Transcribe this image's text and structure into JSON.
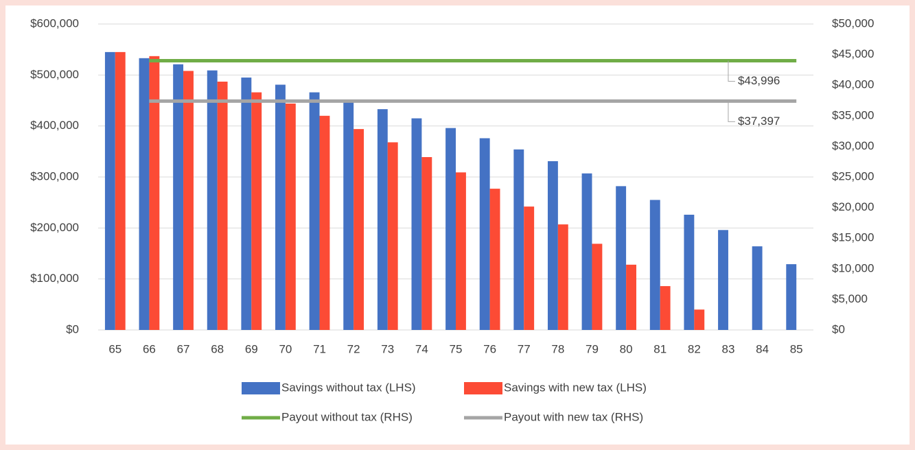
{
  "chart_data": {
    "type": "bar",
    "categories": [
      "65",
      "66",
      "67",
      "68",
      "69",
      "70",
      "71",
      "72",
      "73",
      "74",
      "75",
      "76",
      "77",
      "78",
      "79",
      "80",
      "81",
      "82",
      "83",
      "84",
      "85"
    ],
    "series": [
      {
        "name": "Savings without tax (LHS)",
        "color": "#4472c4",
        "type": "bar",
        "values": [
          545000,
          533000,
          521000,
          509000,
          495000,
          481000,
          466000,
          450000,
          433000,
          415000,
          396000,
          376000,
          354000,
          331000,
          307000,
          282000,
          255000,
          226000,
          196000,
          164000,
          129000
        ]
      },
      {
        "name": "Savings with new tax (LHS)",
        "color": "#fc4b35",
        "type": "bar",
        "values": [
          545000,
          537000,
          508000,
          487000,
          466000,
          444000,
          420000,
          394000,
          368000,
          339000,
          309000,
          277000,
          242000,
          207000,
          169000,
          128000,
          86000,
          40000,
          null,
          null,
          null
        ]
      },
      {
        "name": "Payout without tax (RHS)",
        "color": "#70ad47",
        "type": "line",
        "axis": "y2",
        "values": [
          null,
          43996,
          43996,
          43996,
          43996,
          43996,
          43996,
          43996,
          43996,
          43996,
          43996,
          43996,
          43996,
          43996,
          43996,
          43996,
          43996,
          43996,
          43996,
          43996,
          43996
        ],
        "value_labels": [
          null,
          null,
          null,
          null,
          null,
          null,
          null,
          null,
          null,
          null,
          null,
          null,
          null,
          null,
          null,
          null,
          null,
          null,
          "$43,996",
          null,
          null
        ]
      },
      {
        "name": "Payout with new tax (RHS)",
        "color": "#a5a5a5",
        "type": "line",
        "axis": "y2",
        "values": [
          null,
          37397,
          37397,
          37397,
          37397,
          37397,
          37397,
          37397,
          37397,
          37397,
          37397,
          37397,
          37397,
          37397,
          37397,
          37397,
          37397,
          37397,
          37397,
          37397,
          37397
        ],
        "value_labels": [
          null,
          null,
          null,
          null,
          null,
          null,
          null,
          null,
          null,
          null,
          null,
          null,
          null,
          null,
          null,
          null,
          null,
          null,
          "$37,397",
          null,
          null
        ]
      }
    ],
    "ylim": [
      0,
      600000
    ],
    "yticks": [
      {
        "value": 0,
        "label": "$0"
      },
      {
        "value": 100000,
        "label": "$100,000"
      },
      {
        "value": 200000,
        "label": "$200,000"
      },
      {
        "value": 300000,
        "label": "$300,000"
      },
      {
        "value": 400000,
        "label": "$400,000"
      },
      {
        "value": 500000,
        "label": "$500,000"
      },
      {
        "value": 600000,
        "label": "$600,000"
      }
    ],
    "y2lim": [
      0,
      50000
    ],
    "y2ticks": [
      {
        "value": 0,
        "label": "$0"
      },
      {
        "value": 5000,
        "label": "$5,000"
      },
      {
        "value": 10000,
        "label": "$10,000"
      },
      {
        "value": 15000,
        "label": "$15,000"
      },
      {
        "value": 20000,
        "label": "$20,000"
      },
      {
        "value": 25000,
        "label": "$25,000"
      },
      {
        "value": 30000,
        "label": "$30,000"
      },
      {
        "value": 35000,
        "label": "$35,000"
      },
      {
        "value": 40000,
        "label": "$40,000"
      },
      {
        "value": 45000,
        "label": "$45,000"
      },
      {
        "value": 50000,
        "label": "$50,000"
      }
    ],
    "grid": true,
    "legend": "bottom"
  }
}
